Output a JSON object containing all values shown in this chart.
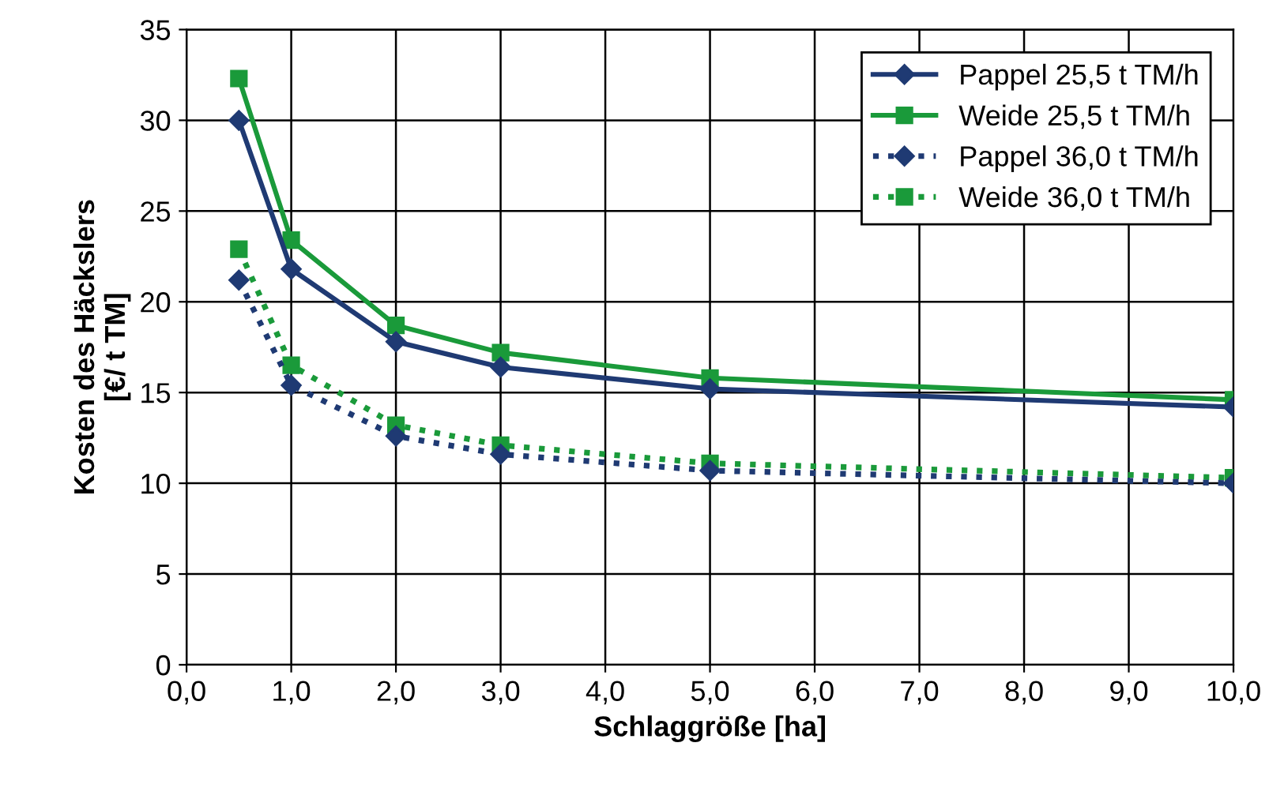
{
  "chart_data": {
    "type": "line",
    "xlabel": "Schlaggröße [ha]",
    "ylabel": "Kosten des Häckslers\n[€/ t TM]",
    "x": [
      0.5,
      1,
      2,
      3,
      5,
      10
    ],
    "series": [
      {
        "name": "Pappel 25,5 t TM/h",
        "color": "#1f3a73",
        "marker": "diamond",
        "line_style": "solid",
        "values": [
          30.0,
          21.8,
          17.8,
          16.4,
          15.2,
          14.2
        ]
      },
      {
        "name": "Weide 25,5 t TM/h",
        "color": "#1a9a3a",
        "marker": "square",
        "line_style": "solid",
        "values": [
          32.3,
          23.4,
          18.7,
          17.2,
          15.8,
          14.6
        ]
      },
      {
        "name": "Pappel 36,0 t TM/h",
        "color": "#1f3a73",
        "marker": "diamond",
        "line_style": "dotted",
        "values": [
          21.2,
          15.4,
          12.6,
          11.6,
          10.7,
          10.0
        ]
      },
      {
        "name": "Weide 36,0 t TM/h",
        "color": "#1a9a3a",
        "marker": "square",
        "line_style": "dotted",
        "values": [
          22.9,
          16.5,
          13.2,
          12.1,
          11.1,
          10.3
        ]
      }
    ],
    "xlim": [
      0,
      10
    ],
    "ylim": [
      0,
      35
    ],
    "xticks": [
      {
        "value": 0,
        "label": "0,0"
      },
      {
        "value": 1,
        "label": "1,0"
      },
      {
        "value": 2,
        "label": "2,0"
      },
      {
        "value": 3,
        "label": "3,0"
      },
      {
        "value": 4,
        "label": "4,0"
      },
      {
        "value": 5,
        "label": "5,0"
      },
      {
        "value": 6,
        "label": "6,0"
      },
      {
        "value": 7,
        "label": "7,0"
      },
      {
        "value": 8,
        "label": "8,0"
      },
      {
        "value": 9,
        "label": "9,0"
      },
      {
        "value": 10,
        "label": "10,0"
      }
    ],
    "yticks": [
      0,
      5,
      10,
      15,
      20,
      25,
      30,
      35
    ],
    "grid": true,
    "legend": "top right"
  }
}
